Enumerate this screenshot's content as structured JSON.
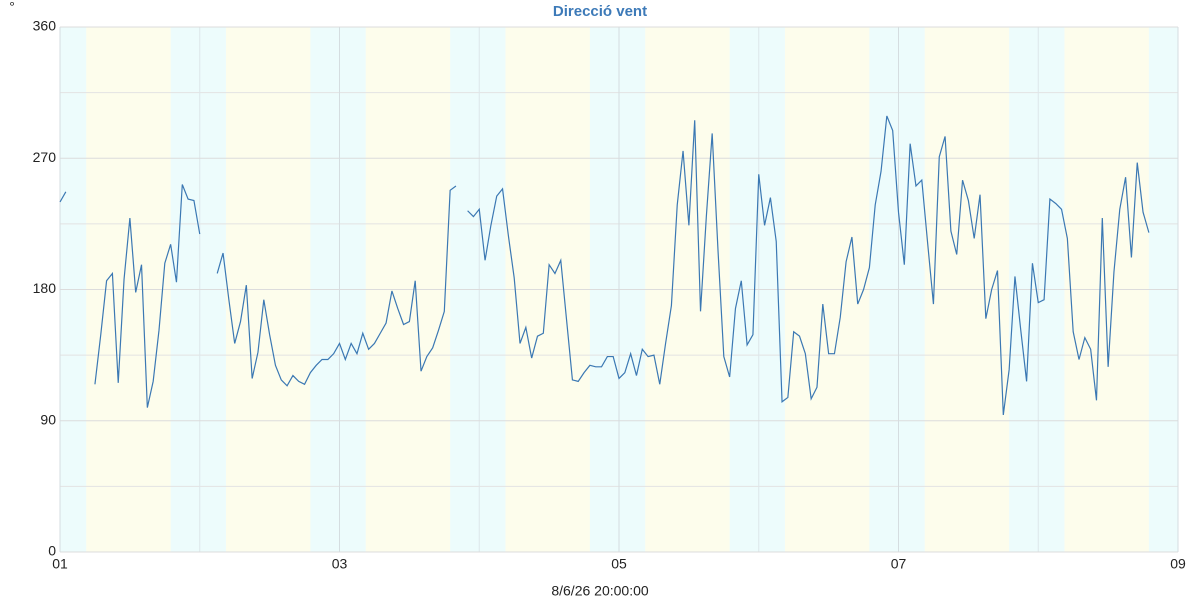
{
  "chart_data": {
    "type": "line",
    "title": "Direcció vent",
    "ylabel": "°",
    "xlabel": "8/6/26 20:00:00",
    "xlim": [
      0,
      192
    ],
    "xticks": [
      {
        "value": 0,
        "label": "01"
      },
      {
        "value": 48,
        "label": "03"
      },
      {
        "value": 96,
        "label": "05"
      },
      {
        "value": 144,
        "label": "07"
      },
      {
        "value": 192,
        "label": "09"
      }
    ],
    "minor_xticks": [
      24,
      72,
      120,
      168
    ],
    "ylim": [
      0,
      360
    ],
    "yticks": [
      0,
      90,
      180,
      270,
      360
    ],
    "minor_yticks": [
      45,
      135,
      225,
      315
    ],
    "grid": true,
    "day_bands": [
      [
        4.5,
        19
      ],
      [
        28.5,
        43
      ],
      [
        52.5,
        67
      ],
      [
        76.5,
        91
      ],
      [
        100.5,
        115
      ],
      [
        124.5,
        139
      ],
      [
        148.5,
        163
      ],
      [
        172.5,
        187
      ]
    ],
    "day_color": "#fdfdec",
    "night_color": "#edfcfc",
    "x": [
      0,
      1,
      2,
      3,
      4,
      5,
      6,
      7,
      8,
      9,
      10,
      11,
      12,
      13,
      14,
      15,
      16,
      17,
      18,
      19,
      20,
      21,
      22,
      23,
      24,
      25,
      26,
      27,
      28,
      29,
      30,
      31,
      32,
      33,
      34,
      35,
      36,
      37,
      38,
      39,
      40,
      41,
      42,
      43,
      44,
      45,
      46,
      47,
      48,
      49,
      50,
      51,
      52,
      53,
      54,
      55,
      56,
      57,
      58,
      59,
      60,
      61,
      62,
      63,
      64,
      65,
      66,
      67,
      68,
      69,
      70,
      71,
      72,
      73,
      74,
      75,
      76,
      77,
      78,
      79,
      80,
      81,
      82,
      83,
      84,
      85,
      86,
      87,
      88,
      89,
      90,
      91,
      92,
      93,
      94,
      95,
      96,
      97,
      98,
      99,
      100,
      101,
      102,
      103,
      104,
      105,
      106,
      107,
      108,
      109,
      110,
      111,
      112,
      113,
      114,
      115,
      116,
      117,
      118,
      119,
      120,
      121,
      122,
      123,
      124,
      125,
      126,
      127,
      128,
      129,
      130,
      131,
      132,
      133,
      134,
      135,
      136,
      137,
      138,
      139,
      140,
      141,
      142,
      143,
      144,
      145,
      146,
      147,
      148,
      149,
      150,
      151,
      152,
      153,
      154,
      155,
      156,
      157,
      158,
      159,
      160,
      161,
      162,
      163,
      164,
      165,
      166,
      167,
      168,
      169,
      170,
      171,
      172,
      173,
      174,
      175,
      176,
      177,
      178,
      179,
      180,
      181,
      182,
      183,
      184,
      185,
      186,
      187
    ],
    "series": [
      {
        "color": "#3b78b3",
        "values": [
          240,
          247,
          null,
          null,
          null,
          null,
          115,
          149,
          186,
          191,
          116,
          187,
          229,
          178,
          197,
          99,
          117,
          152,
          198,
          211,
          185,
          252,
          242,
          241,
          218,
          null,
          null,
          191,
          205,
          173,
          143,
          158,
          183,
          119,
          137,
          173,
          149,
          128,
          118,
          114,
          121,
          117,
          115,
          123,
          128,
          132,
          132,
          136,
          143,
          132,
          143,
          136,
          150,
          139,
          143,
          150,
          157,
          179,
          167,
          156,
          158,
          186,
          124,
          134,
          140,
          152,
          165,
          248,
          251,
          null,
          234,
          230,
          235,
          200,
          224,
          244,
          249,
          217,
          188,
          143,
          154,
          133,
          148,
          150,
          197,
          191,
          200,
          159,
          118,
          117,
          123,
          128,
          127,
          127,
          134,
          134,
          119,
          123,
          136,
          121,
          139,
          134,
          135,
          115,
          143,
          169,
          238,
          275,
          224,
          296,
          165,
          230,
          287,
          207,
          134,
          120,
          167,
          186,
          142,
          149,
          259,
          224,
          243,
          213,
          103,
          106,
          151,
          148,
          136,
          105,
          113,
          170,
          136,
          136,
          161,
          199,
          216,
          170,
          180,
          195,
          238,
          261,
          299,
          289,
          233,
          197,
          280,
          251,
          255,
          212,
          170,
          271,
          285,
          220,
          204,
          255,
          241,
          215,
          245,
          160,
          180,
          193,
          94,
          125,
          189,
          152,
          117,
          198,
          171,
          173,
          242,
          239,
          235,
          215,
          151,
          132,
          147,
          139,
          104,
          229,
          127,
          192,
          235,
          257,
          202,
          267,
          233,
          219
        ]
      }
    ]
  }
}
